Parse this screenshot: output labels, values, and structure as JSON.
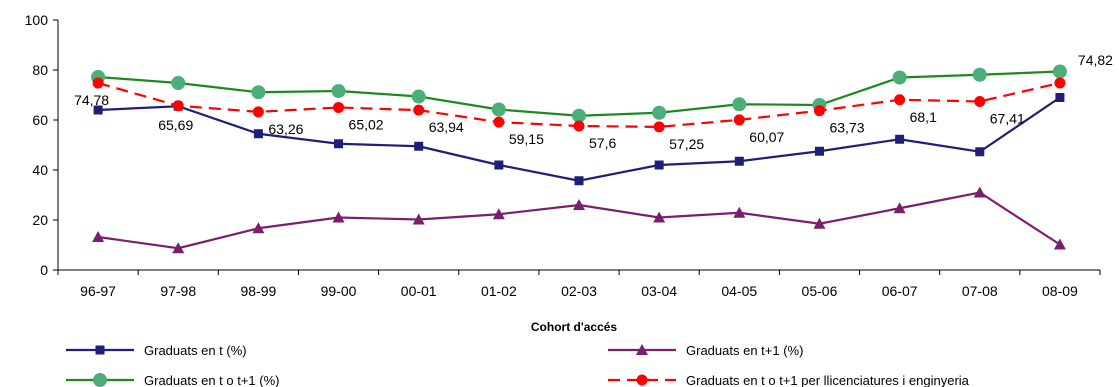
{
  "chart_data": {
    "type": "line",
    "title": "",
    "xlabel": "Cohort d'accés",
    "ylabel": "",
    "ylim": [
      0,
      100
    ],
    "yticks": [
      0,
      20,
      40,
      60,
      80,
      100
    ],
    "grid": false,
    "legend_position": "bottom",
    "categories": [
      "96-97",
      "97-98",
      "98-99",
      "99-00",
      "00-01",
      "01-02",
      "02-03",
      "03-04",
      "04-05",
      "05-06",
      "06-07",
      "07-08",
      "08-09"
    ],
    "series": [
      {
        "name": "Graduats en t (%)",
        "color": "#1f1f7a",
        "marker": "square",
        "dashed": false,
        "values": [
          64,
          65.5,
          54.5,
          50.5,
          49.5,
          42,
          35.7,
          42,
          43.5,
          47.5,
          52.3,
          47.3,
          69
        ]
      },
      {
        "name": "Graduats en t+1 (%)",
        "color": "#7a1f6e",
        "marker": "triangle",
        "dashed": false,
        "values": [
          13.2,
          8.7,
          16.7,
          21,
          20.2,
          22.3,
          26,
          21,
          22.9,
          18.5,
          24.7,
          31,
          10.2
        ]
      },
      {
        "name": "Graduats en t o t+1 (%)",
        "color": "#1e8a1e",
        "marker": "circle",
        "marker_color": "#4caf7a",
        "dashed": false,
        "values": [
          77.2,
          74.8,
          71.1,
          71.6,
          69.4,
          64.2,
          61.7,
          62.9,
          66.3,
          66,
          77,
          78.1,
          79.4
        ]
      },
      {
        "name": "Graduats en t o t+1 per llicenciatures i enginyeria",
        "color": "#ff0000",
        "marker": "circle",
        "dashed": true,
        "values": [
          74.78,
          65.69,
          63.26,
          65.02,
          63.94,
          59.15,
          57.6,
          57.25,
          60.07,
          63.73,
          68.1,
          67.41,
          74.82
        ],
        "labels": [
          "74,78",
          "65,69",
          "63,26",
          "65,02",
          "63,94",
          "59,15",
          "57,6",
          "57,25",
          "60,07",
          "63,73",
          "68,1",
          "67,41",
          "74,82"
        ]
      }
    ]
  }
}
